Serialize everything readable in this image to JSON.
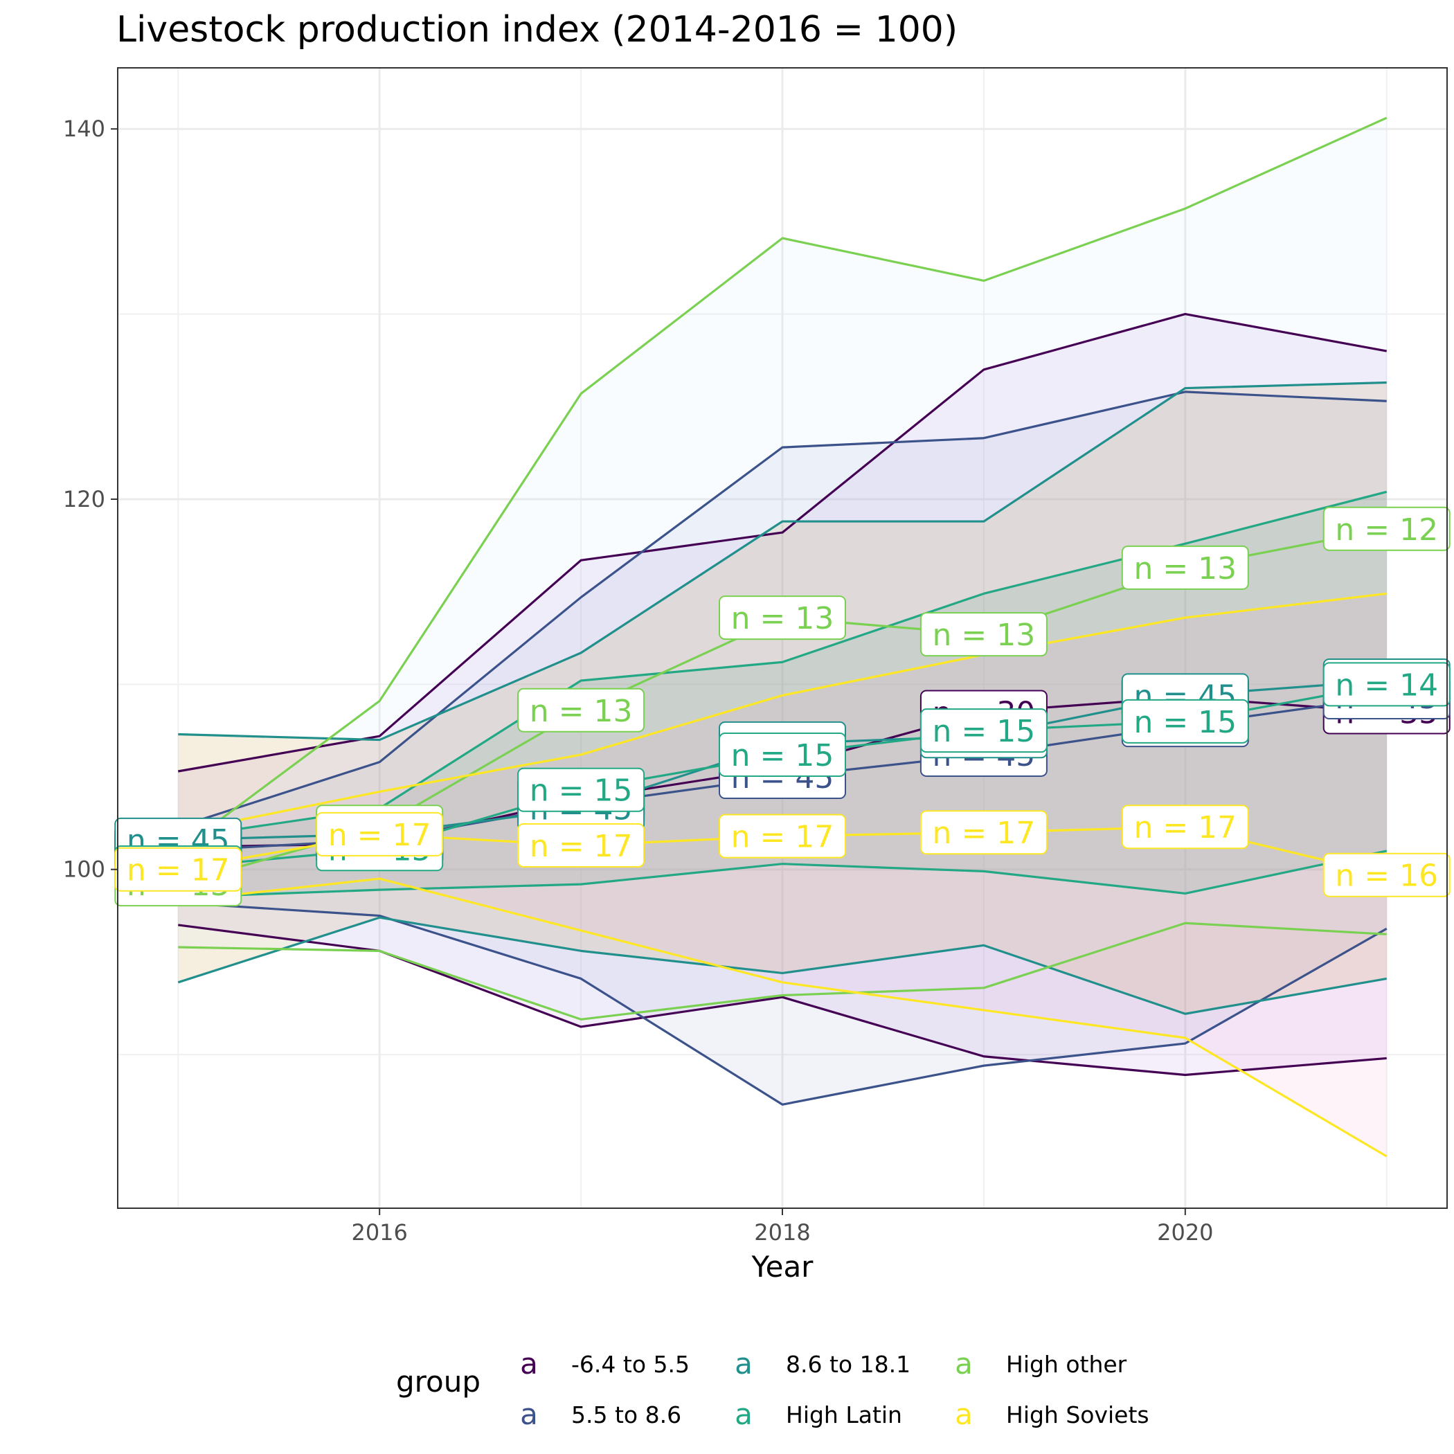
{
  "chart_data": {
    "type": "line",
    "title": "Livestock production index (2014-2016 = 100)",
    "xlabel": "Year",
    "ylabel": "",
    "x": [
      2015,
      2016,
      2017,
      2018,
      2019,
      2020,
      2021
    ],
    "xlim": [
      2014.7,
      2021.3
    ],
    "ylim": [
      81.7,
      143.3
    ],
    "x_ticks": [
      2016,
      2018,
      2020
    ],
    "y_ticks": [
      100,
      120,
      140
    ],
    "grid": true,
    "legend": {
      "title": "group",
      "position": "bottom",
      "key_glyph": "a"
    },
    "series": [
      {
        "name": "-6.4 to 5.5",
        "color": "#440154",
        "fill": "#B57BE3",
        "mean": [
          101.2,
          101.4,
          103.8,
          105.5,
          108.5,
          109.3,
          108.5
        ],
        "upper": [
          105.3,
          107.2,
          116.7,
          118.2,
          127.0,
          130.0,
          128.0
        ],
        "lower": [
          97.0,
          95.6,
          91.5,
          93.1,
          89.9,
          88.9,
          89.8
        ],
        "n_labels": [
          "n = 30",
          "n = 30",
          "n = 30",
          "n = 30",
          "n = 30",
          "n = 30",
          "n = 35"
        ]
      },
      {
        "name": "5.5 to 8.6",
        "color": "#3B528B",
        "fill": "#8FA0C8",
        "mean": [
          101.0,
          101.6,
          103.5,
          105.0,
          106.2,
          107.8,
          109.3
        ],
        "upper": [
          102.3,
          105.8,
          114.7,
          122.8,
          123.3,
          125.8,
          125.3
        ],
        "lower": [
          98.2,
          97.5,
          94.1,
          87.3,
          89.4,
          90.6,
          96.8
        ],
        "n_labels": [
          "n = 45",
          "n = 45",
          "n = 45",
          "n = 45",
          "n = 45",
          "n = 45",
          "n = 45"
        ]
      },
      {
        "name": "8.6 to 18.1",
        "color": "#21908C",
        "fill": "#B8860B",
        "mean": [
          101.6,
          101.9,
          103.3,
          106.8,
          107.2,
          109.4,
          110.2
        ],
        "upper": [
          107.3,
          107.0,
          111.7,
          118.8,
          118.8,
          126.0,
          126.3
        ],
        "lower": [
          93.9,
          97.4,
          95.6,
          94.4,
          95.9,
          92.2,
          94.1
        ],
        "n_labels": [
          "n = 45",
          "n = 45",
          "n = 45",
          "n = 45",
          "n = 45",
          "n = 45",
          "n = 45"
        ]
      },
      {
        "name": "High Latin",
        "color": "#22A884",
        "fill": "#2E8B57",
        "mean": [
          100.1,
          101.1,
          104.3,
          106.2,
          107.5,
          108.0,
          110.0
        ],
        "upper": [
          101.7,
          103.3,
          110.2,
          111.2,
          114.9,
          117.6,
          120.4
        ],
        "lower": [
          98.5,
          98.9,
          99.2,
          100.3,
          99.9,
          98.7,
          101.0
        ],
        "n_labels": [
          "n = 15",
          "n = 15",
          "n = 15",
          "n = 15",
          "n = 15",
          "n = 15",
          "n = 14"
        ]
      },
      {
        "name": "High other",
        "color": "#7AD151",
        "fill": "#D2E4FC",
        "mean": [
          99.2,
          102.3,
          108.6,
          113.6,
          112.7,
          116.3,
          118.4
        ],
        "upper": [
          101.0,
          109.1,
          125.7,
          134.1,
          131.8,
          135.7,
          140.6
        ],
        "lower": [
          95.8,
          95.6,
          91.9,
          93.2,
          93.6,
          97.1,
          96.5
        ],
        "n_labels": [
          "n = 13",
          "n = 13",
          "n = 13",
          "n = 13",
          "n = 13",
          "n = 13",
          "n = 12"
        ]
      },
      {
        "name": "High Soviets",
        "color": "#FDE725",
        "fill": "#F0A0D0",
        "mean": [
          100.0,
          101.9,
          101.3,
          101.8,
          102.0,
          102.3,
          99.7
        ],
        "upper": [
          102.0,
          104.2,
          106.2,
          109.4,
          111.6,
          113.6,
          114.9
        ],
        "lower": [
          98.3,
          99.5,
          96.7,
          93.9,
          92.4,
          90.9,
          84.5
        ],
        "n_labels": [
          "n = 17",
          "n = 17",
          "n = 17",
          "n = 17",
          "n = 17",
          "n = 17",
          "n = 16"
        ]
      }
    ]
  }
}
